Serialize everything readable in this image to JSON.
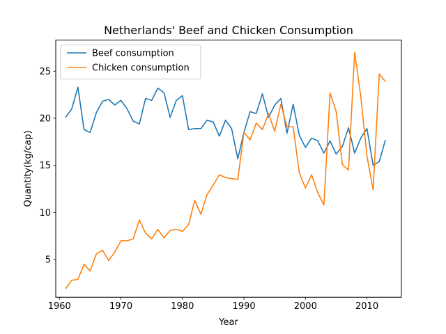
{
  "chart_data": {
    "type": "line",
    "title": "Netherlands' Beef and Chicken Consumption",
    "xlabel": "Year",
    "ylabel": "Quantity(kg/cap)",
    "xlim": [
      1959.4,
      2015.6
    ],
    "ylim": [
      1.0,
      28.3
    ],
    "xticks": [
      1960,
      1970,
      1980,
      1990,
      2000,
      2010
    ],
    "yticks": [
      5,
      10,
      15,
      20,
      25
    ],
    "grid": false,
    "legend_position": "top-left",
    "x": [
      1961,
      1962,
      1963,
      1964,
      1965,
      1966,
      1967,
      1968,
      1969,
      1970,
      1971,
      1972,
      1973,
      1974,
      1975,
      1976,
      1977,
      1978,
      1979,
      1980,
      1981,
      1982,
      1983,
      1984,
      1985,
      1986,
      1987,
      1988,
      1989,
      1990,
      1991,
      1992,
      1993,
      1994,
      1995,
      1996,
      1997,
      1998,
      1999,
      2000,
      2001,
      2002,
      2003,
      2004,
      2005,
      2006,
      2007,
      2008,
      2009,
      2010,
      2011,
      2012,
      2013
    ],
    "series": [
      {
        "name": "Beef consumption",
        "color": "#1f77b4",
        "values": [
          20.1,
          21.0,
          23.3,
          18.8,
          18.5,
          20.6,
          21.8,
          22.0,
          21.4,
          21.9,
          21.0,
          19.7,
          19.4,
          22.1,
          21.9,
          23.2,
          22.7,
          20.1,
          21.9,
          22.4,
          18.8,
          18.9,
          18.9,
          19.8,
          19.6,
          18.1,
          19.8,
          18.9,
          15.7,
          18.5,
          20.7,
          20.5,
          22.6,
          20.1,
          21.4,
          22.1,
          18.4,
          21.5,
          18.2,
          16.9,
          17.9,
          17.6,
          16.3,
          17.6,
          16.2,
          17.0,
          19.0,
          16.3,
          17.9,
          18.9,
          15.0,
          15.4,
          17.7
        ]
      },
      {
        "name": "Chicken consumption",
        "color": "#ff7f0e",
        "values": [
          1.9,
          2.8,
          2.9,
          4.5,
          3.8,
          5.6,
          6.0,
          4.9,
          5.8,
          7.0,
          7.0,
          7.2,
          9.2,
          7.8,
          7.2,
          8.2,
          7.3,
          8.1,
          8.2,
          8.0,
          8.7,
          11.3,
          9.8,
          11.9,
          12.9,
          14.0,
          13.7,
          13.6,
          13.5,
          18.5,
          17.7,
          19.5,
          18.8,
          20.5,
          18.6,
          21.5,
          19.1,
          19.1,
          14.2,
          12.6,
          14.0,
          12.1,
          10.8,
          22.7,
          20.7,
          15.1,
          14.5,
          27.0,
          22.3,
          16.0,
          12.4,
          24.7,
          23.9
        ]
      }
    ]
  }
}
